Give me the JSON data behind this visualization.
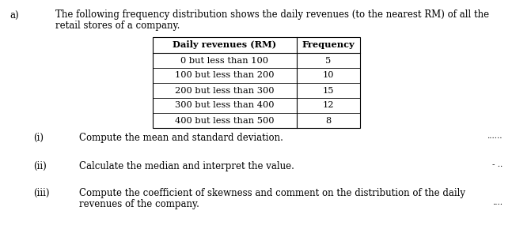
{
  "label_a": "a)",
  "intro_text_line1": "The following frequency distribution shows the daily revenues (to the nearest RM) of all the",
  "intro_text_line2": "retail stores of a company.",
  "table_header": [
    "Daily revenues (RM)",
    "Frequency"
  ],
  "table_rows": [
    [
      "0 but less than 100",
      "5"
    ],
    [
      "100 but less than 200",
      "10"
    ],
    [
      "200 but less than 300",
      "15"
    ],
    [
      "300 but less than 400",
      "12"
    ],
    [
      "400 but less than 500",
      "8"
    ]
  ],
  "questions": [
    {
      "label": "(i)",
      "text": "Compute the mean and standard deviation.",
      "dots": "......"
    },
    {
      "label": "(ii)",
      "text": "Calculate the median and interpret the value.",
      "dots": "- .."
    },
    {
      "label": "(iii)",
      "text_line1": "Compute the coefficient of skewness and comment on the distribution of the daily",
      "text_line2": "revenues of the company.",
      "dots": "...."
    }
  ],
  "bg_color": "#ffffff",
  "text_color": "#000000",
  "font_size_main": 8.5,
  "font_size_table": 8.2
}
